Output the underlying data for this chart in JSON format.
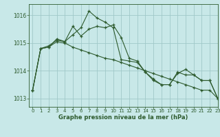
{
  "title": "Graphe pression niveau de la mer (hPa)",
  "background_color": "#c8e8e8",
  "grid_color": "#a0c8c8",
  "line_color": "#2d5a2d",
  "xlim": [
    -0.5,
    23
  ],
  "ylim": [
    1012.7,
    1016.4
  ],
  "yticks": [
    1013,
    1014,
    1015,
    1016
  ],
  "xticks": [
    0,
    1,
    2,
    3,
    4,
    5,
    6,
    7,
    8,
    9,
    10,
    11,
    12,
    13,
    14,
    15,
    16,
    17,
    18,
    19,
    20,
    21,
    22,
    23
  ],
  "series": [
    [
      1013.3,
      1014.8,
      1014.9,
      1015.1,
      1015.05,
      1015.3,
      1015.55,
      1016.15,
      1015.9,
      1015.75,
      1015.55,
      1014.4,
      1014.35,
      1014.3,
      1013.95,
      1013.65,
      1013.5,
      1013.5,
      1013.9,
      1014.05,
      1013.85,
      1013.65,
      1013.65,
      1013.0
    ],
    [
      1013.3,
      1014.8,
      1014.85,
      1015.15,
      1015.05,
      1015.6,
      1015.25,
      1015.5,
      1015.6,
      1015.55,
      1015.65,
      1015.2,
      1014.45,
      1014.35,
      1013.95,
      1013.7,
      1013.5,
      1013.5,
      1013.95,
      1013.85,
      1013.85,
      1013.65,
      1013.65,
      1013.0
    ],
    [
      1013.3,
      1014.8,
      1014.85,
      1015.05,
      1015.0,
      1014.85,
      1014.75,
      1014.65,
      1014.55,
      1014.45,
      1014.4,
      1014.3,
      1014.2,
      1014.1,
      1014.0,
      1013.9,
      1013.8,
      1013.7,
      1013.6,
      1013.5,
      1013.4,
      1013.3,
      1013.3,
      1013.0
    ]
  ]
}
